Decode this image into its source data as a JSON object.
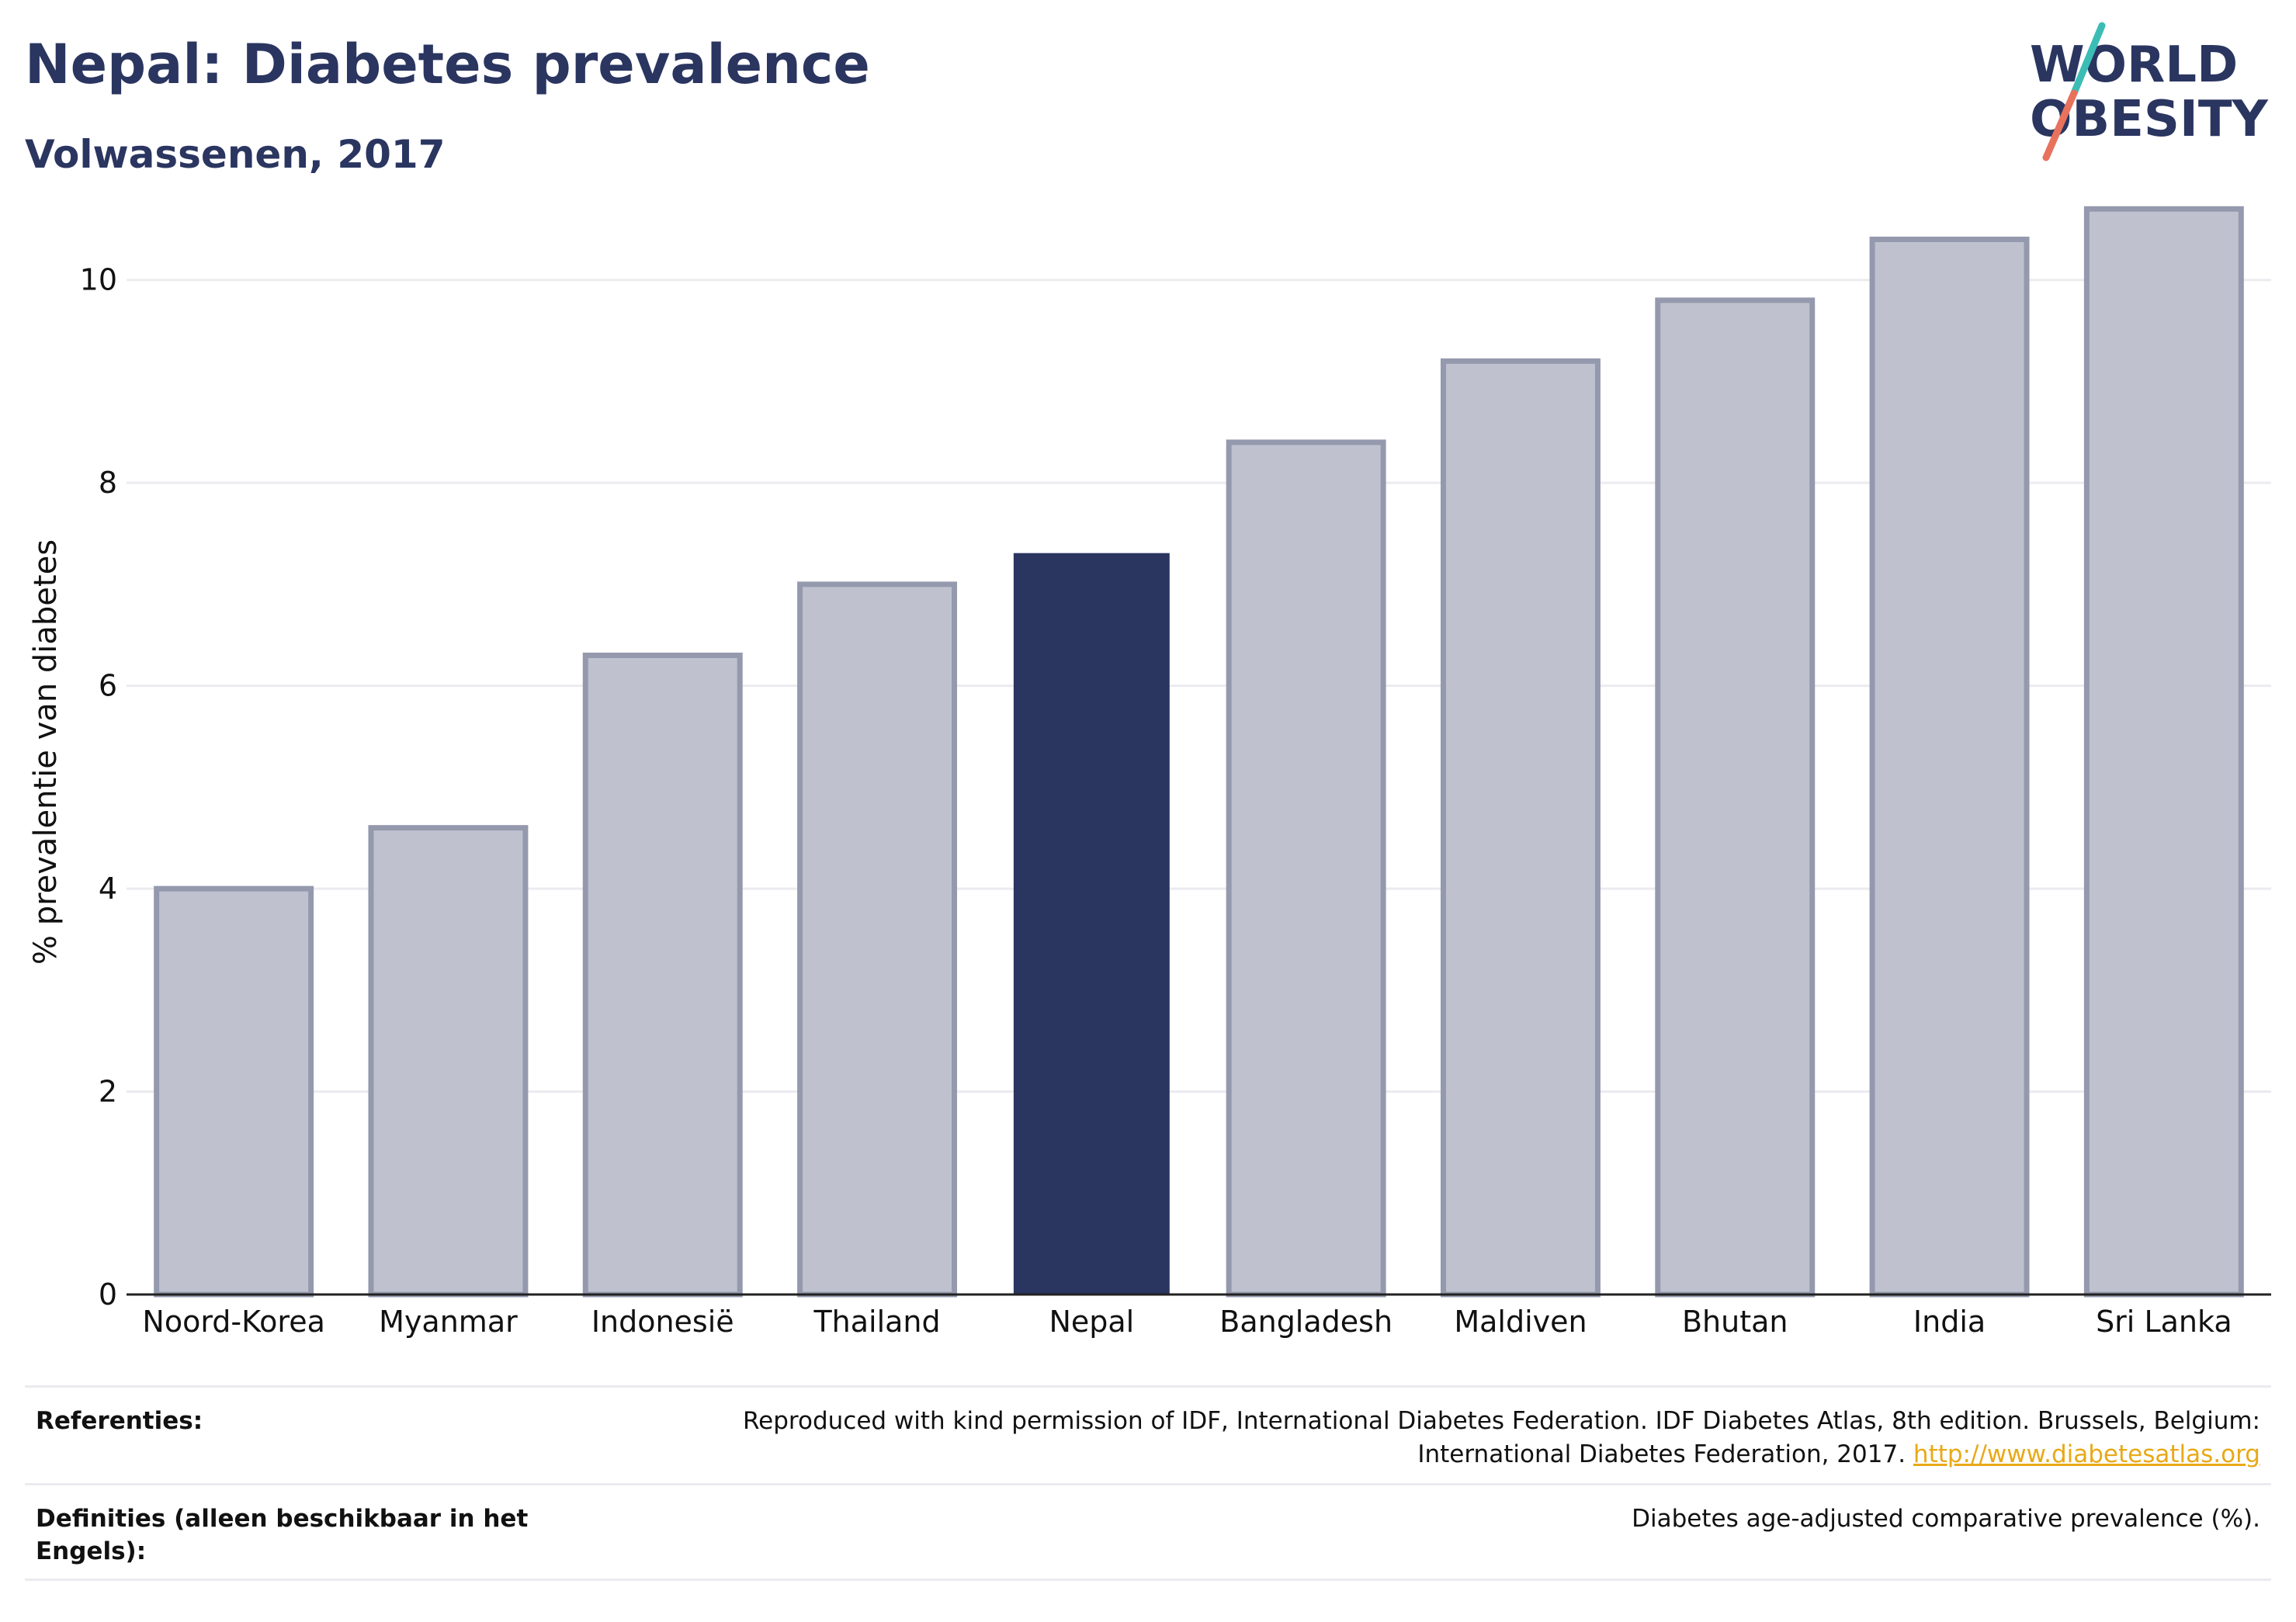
{
  "header": {
    "title": "Nepal: Diabetes prevalence",
    "subtitle": "Volwassenen, 2017"
  },
  "logo": {
    "line1": "WORLD",
    "line2": "OBESITY",
    "accent_teal": "#3bbdb5",
    "accent_red": "#e8725c",
    "text_color": "#2a3560"
  },
  "chart_data": {
    "type": "bar",
    "title": "",
    "xlabel": "",
    "ylabel": "% prevalentie van diabetes",
    "ylim": [
      0,
      11
    ],
    "yticks": [
      0,
      2,
      4,
      6,
      8,
      10
    ],
    "grid": true,
    "categories": [
      "Noord-Korea",
      "Myanmar",
      "Indonesië",
      "Thailand",
      "Nepal",
      "Bangladesh",
      "Maldiven",
      "Bhutan",
      "India",
      "Sri Lanka"
    ],
    "values": [
      4.0,
      4.6,
      6.3,
      7.0,
      7.3,
      8.4,
      9.2,
      9.8,
      10.4,
      10.7
    ],
    "highlight": "Nepal",
    "colors": {
      "highlight_fill": "#2a3560",
      "bar_fill": "#bfc2ce",
      "bar_stroke": "#9499ad",
      "grid": "#ebebf0",
      "axis": "#222222"
    }
  },
  "references": {
    "sources_label": "Referenties:",
    "sources_text_line1": "Reproduced with kind permission of IDF, International Diabetes Federation. IDF Diabetes Atlas, 8th edition. Brussels, Belgium:",
    "sources_text_line2": "International Diabetes Federation, 2017.",
    "sources_link": "http://www.diabetesatlas.org",
    "definitions_label": "Definities (alleen beschikbaar in het Engels):",
    "definitions_text": "Diabetes age-adjusted comparative prevalence (%)."
  }
}
